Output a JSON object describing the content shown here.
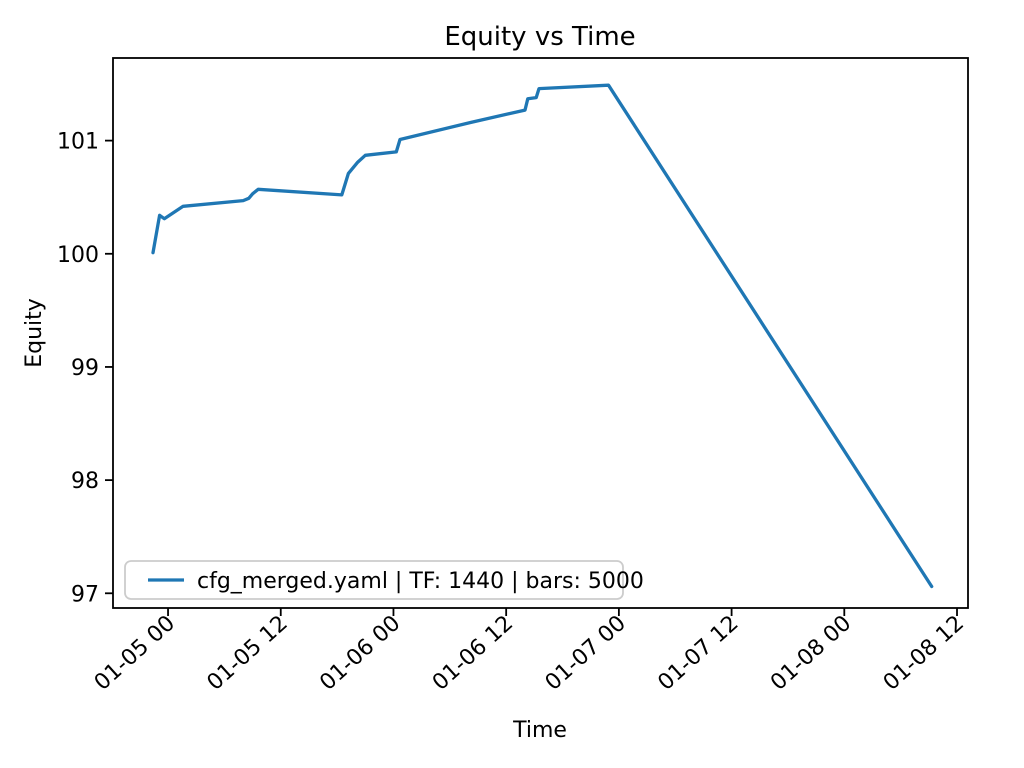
{
  "chart_data": {
    "type": "line",
    "title": "Equity vs Time",
    "xlabel": "Time",
    "ylabel": "Equity",
    "grid": false,
    "x_axis": {
      "unit": "MM-DD HH",
      "tick_labels": [
        "01-05 00",
        "01-05 12",
        "01-06 00",
        "01-06 12",
        "01-07 00",
        "01-07 12",
        "01-08 00",
        "01-08 12"
      ],
      "tick_hours": [
        0,
        12,
        24,
        36,
        48,
        60,
        72,
        84
      ],
      "range_hours": [
        -5.86,
        85.17
      ],
      "label_rotation_deg": 42
    },
    "y_axis": {
      "tick_labels": [
        "97",
        "98",
        "99",
        "100",
        "101"
      ],
      "tick_values": [
        97,
        98,
        99,
        100,
        101
      ],
      "range": [
        96.87,
        101.73
      ]
    },
    "legend": {
      "position": "lower-left",
      "entries": [
        {
          "label": "cfg_merged.yaml | TF: 1440 | bars: 5000",
          "color": "#1f77b4"
        }
      ]
    },
    "series": [
      {
        "name": "cfg_merged.yaml | TF: 1440 | bars: 5000",
        "color": "#1f77b4",
        "x_unit": "hours since 01-05 00:00",
        "points": [
          [
            -1.6,
            100.01
          ],
          [
            -0.9,
            100.34
          ],
          [
            -0.4,
            100.31
          ],
          [
            1.6,
            100.42
          ],
          [
            8.0,
            100.47
          ],
          [
            8.6,
            100.49
          ],
          [
            9.0,
            100.53
          ],
          [
            9.6,
            100.57
          ],
          [
            18.5,
            100.52
          ],
          [
            19.2,
            100.71
          ],
          [
            20.2,
            100.81
          ],
          [
            21.0,
            100.87
          ],
          [
            24.3,
            100.9
          ],
          [
            24.7,
            101.01
          ],
          [
            32.2,
            101.16
          ],
          [
            38.0,
            101.27
          ],
          [
            38.3,
            101.37
          ],
          [
            39.2,
            101.38
          ],
          [
            39.5,
            101.46
          ],
          [
            46.9,
            101.49
          ],
          [
            81.3,
            97.06
          ]
        ]
      }
    ]
  },
  "colors": {
    "line": "#1f77b4",
    "axis": "#000000",
    "text": "#000000",
    "legend_border": "#cccccc",
    "background": "#ffffff"
  }
}
